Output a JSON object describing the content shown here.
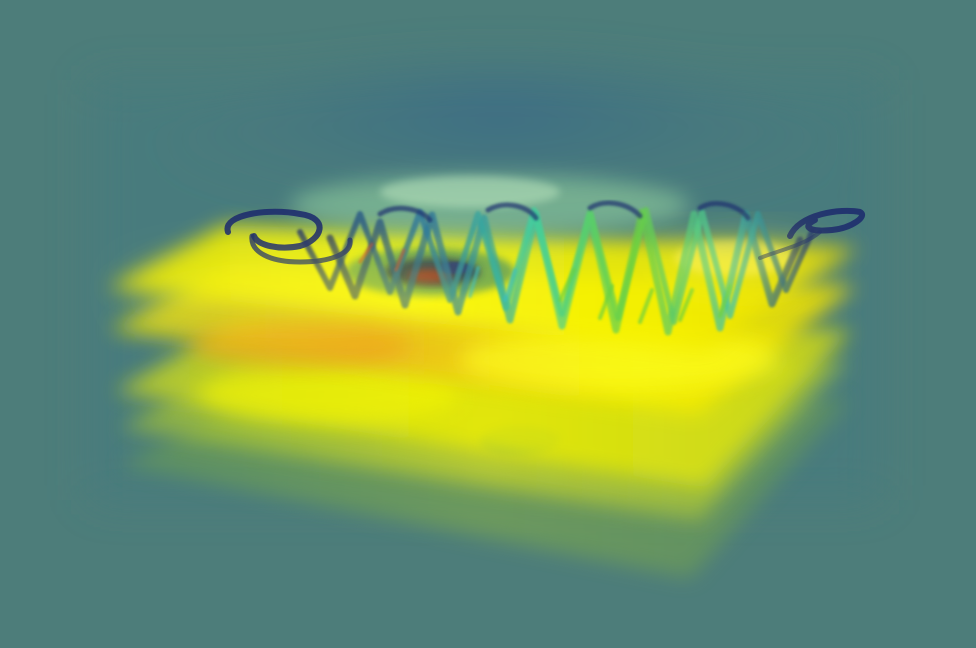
{
  "scene": {
    "description_label": "",
    "colors": {
      "background": "#4d7d7a",
      "haze_top": "#3f7083",
      "slice_yellow": "#f2f200",
      "slice_green": "#8fc23a",
      "slice_orange": "#f0a21e",
      "tube_dark": "#1e2e6e",
      "tube_cyan": "#33c8b0",
      "tube_green": "#5ad24a",
      "tube_red": "#b23020",
      "vortex_dark": "#20305a"
    },
    "layers": [
      {
        "name": "top-slice"
      },
      {
        "name": "second-slice"
      },
      {
        "name": "third-slice"
      },
      {
        "name": "fourth-slice"
      },
      {
        "name": "bottom-slice"
      }
    ],
    "icons": {
      "streamtube": "helix-streamline-icon"
    }
  }
}
